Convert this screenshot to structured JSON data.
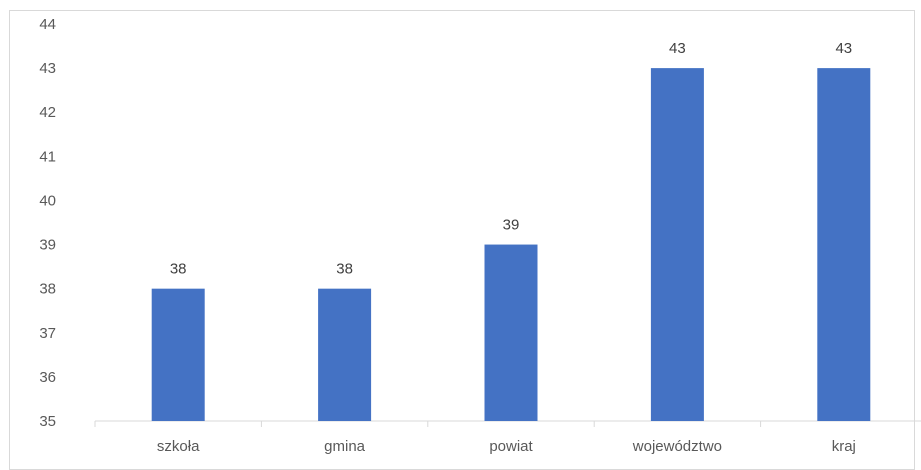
{
  "chart_data": {
    "type": "bar",
    "categories": [
      "szkoła",
      "gmina",
      "powiat",
      "województwo",
      "kraj"
    ],
    "values": [
      38,
      38,
      39,
      43,
      43
    ],
    "data_labels": [
      "38",
      "38",
      "39",
      "43",
      "43"
    ],
    "y_ticks": [
      "35",
      "36",
      "37",
      "38",
      "39",
      "40",
      "41",
      "42",
      "43",
      "44"
    ],
    "ylim": [
      35,
      44
    ],
    "title": "",
    "xlabel": "",
    "ylabel": "",
    "grid": false,
    "legend": "none",
    "bar_color": "#4472C4"
  }
}
